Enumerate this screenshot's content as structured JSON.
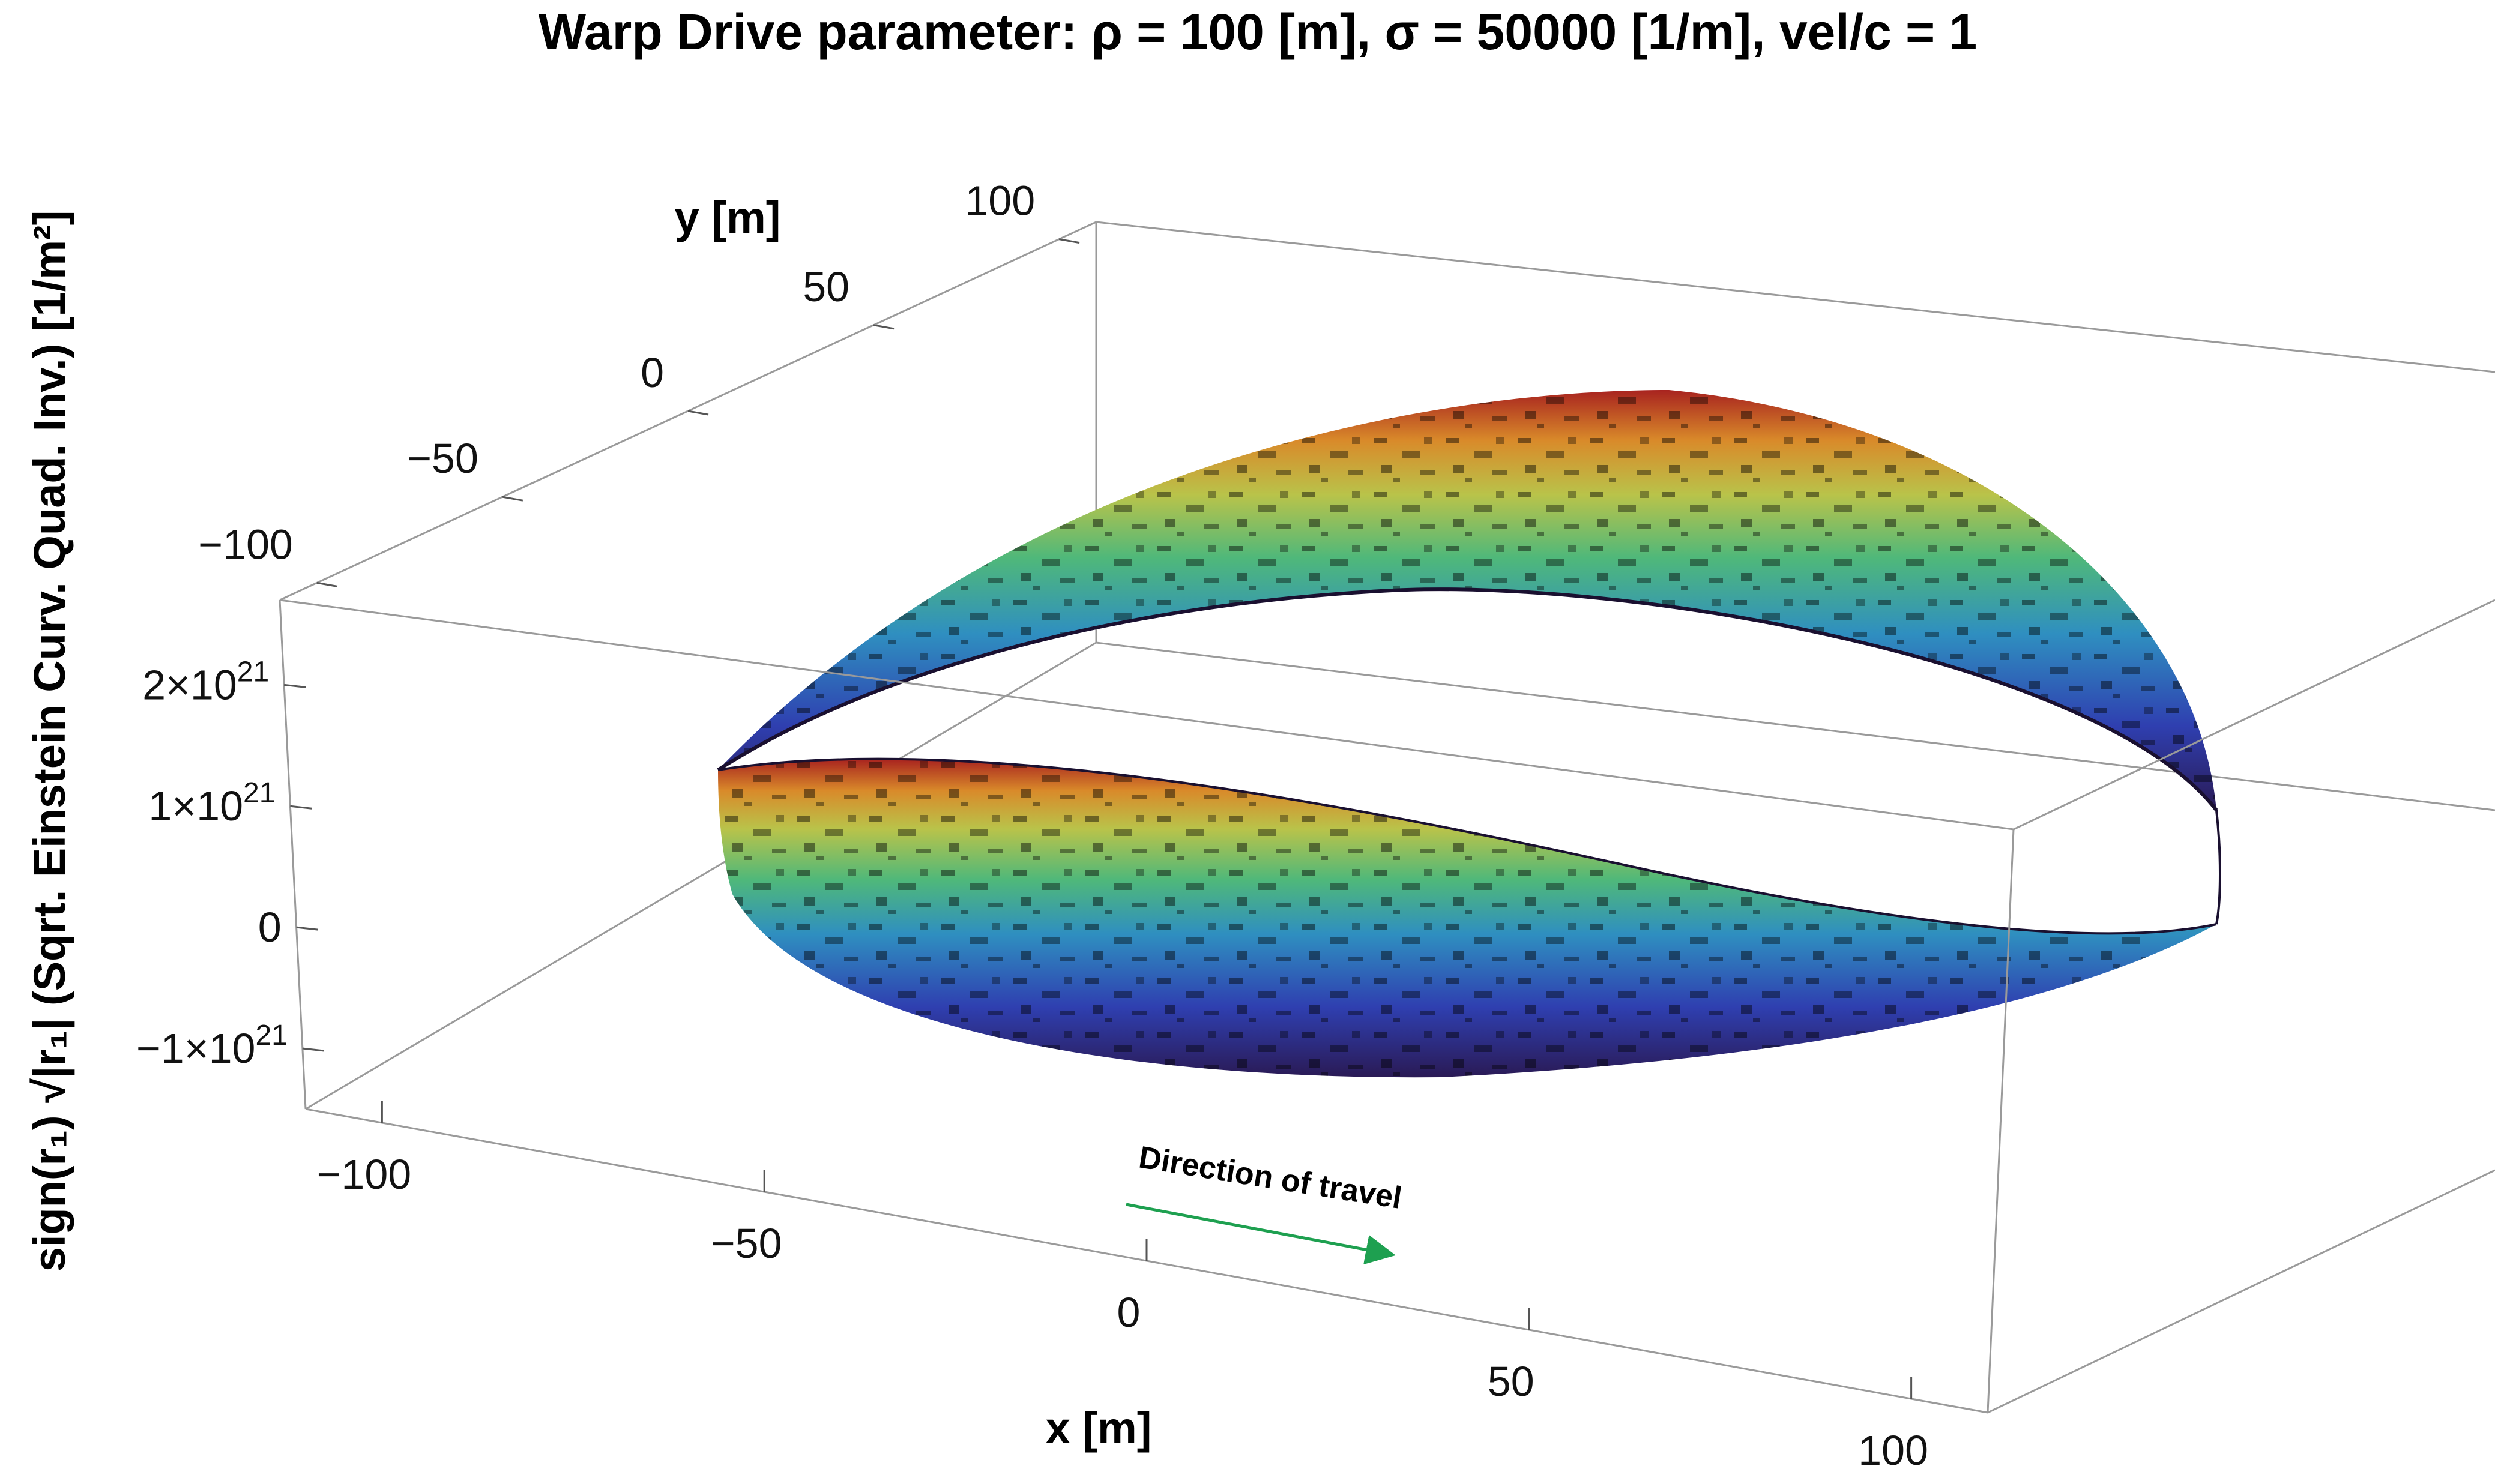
{
  "chart_data": {
    "type": "surface3d",
    "title": "Warp Drive parameter: ρ = 100 [m], σ = 50000 [1/m], vel/c = 1",
    "xlabel": "x [m]",
    "ylabel": "y [m]",
    "zlabel": "sign(r₁) √|r₁| (Sqrt. Einstein Curv. Quad. Inv.) [1/m²]",
    "x_ticks": [
      -100,
      -50,
      0,
      50,
      100
    ],
    "y_ticks": [
      -100,
      -50,
      0,
      50,
      100
    ],
    "z_ticks": [
      -1e+21,
      0,
      1e+21,
      2e+21
    ],
    "x_tick_labels": [
      "−100",
      "−50",
      "0",
      "50",
      "100"
    ],
    "y_tick_labels": [
      "−100",
      "−50",
      "0",
      "50",
      "100"
    ],
    "z_tick_labels": [
      {
        "coef": "−1",
        "exp": "21"
      },
      {
        "coef": "",
        "exp": "",
        "plain": "0"
      },
      {
        "coef": "1",
        "exp": "21"
      },
      {
        "coef": "2",
        "exp": "21"
      }
    ],
    "xlim": [
      -110,
      110
    ],
    "ylim": [
      -110,
      110
    ],
    "zlim": [
      -1.5e+21,
      2.7e+21
    ],
    "surface": {
      "shape": "thin ring wall around the warp bubble, radius ≈ 100 m",
      "peak_value": 2.3e+21,
      "colormap": "rainbow (purple → blue → green → yellow → red)",
      "colors": [
        "#2a1a55",
        "#2f3fb0",
        "#2f8fc0",
        "#4fb87a",
        "#b9c34a",
        "#d98a2a",
        "#a8231f"
      ]
    },
    "annotation": {
      "text": "Direction of travel",
      "arrow_color": "#1ea050"
    },
    "grid": false
  }
}
